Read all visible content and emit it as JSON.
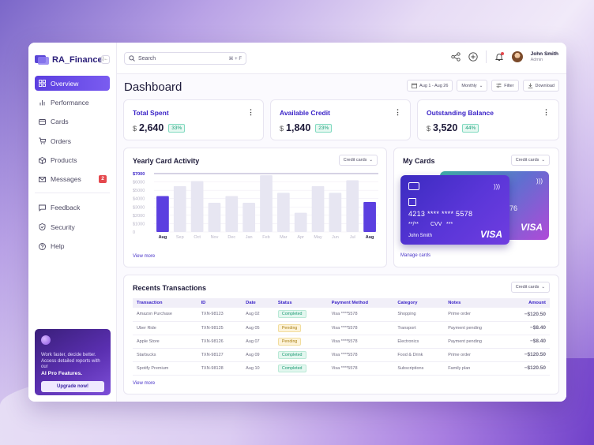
{
  "brand": {
    "name": "RA_Finance"
  },
  "sidebar": {
    "items": [
      {
        "label": "Overview",
        "icon": "grid-icon",
        "active": true
      },
      {
        "label": "Performance",
        "icon": "bar-chart-icon"
      },
      {
        "label": "Cards",
        "icon": "credit-card-icon"
      },
      {
        "label": "Orders",
        "icon": "cart-icon"
      },
      {
        "label": "Products",
        "icon": "box-icon"
      },
      {
        "label": "Messages",
        "icon": "mail-icon",
        "badge": "2"
      }
    ],
    "secondary": [
      {
        "label": "Feedback",
        "icon": "chat-icon"
      },
      {
        "label": "Security",
        "icon": "shield-icon"
      },
      {
        "label": "Help",
        "icon": "help-icon"
      }
    ]
  },
  "promo": {
    "text": "Work faster, decide better. Access detailed reports with our",
    "strong": "AI Pro Features.",
    "button": "Upgrade now!"
  },
  "topbar": {
    "search_placeholder": "Search",
    "shortcut": "⌘ + F",
    "user": {
      "name": "John Smith",
      "role": "Admin"
    }
  },
  "page": {
    "title": "Dashboard",
    "date_range": "Aug 1 - Aug 26",
    "period": "Monthly",
    "filter": "Filter",
    "download": "Download"
  },
  "stats": [
    {
      "title": "Total Spent",
      "currency": "$",
      "value": "2,640",
      "change": "33%"
    },
    {
      "title": "Available Credit",
      "currency": "$",
      "value": "1,840",
      "change": "23%"
    },
    {
      "title": "Outstanding Balance",
      "currency": "$",
      "value": "3,520",
      "change": "44%"
    }
  ],
  "activity": {
    "title": "Yearly Card Activity",
    "dropdown": "Credit cards",
    "view_more": "View more"
  },
  "chart_data": {
    "type": "bar",
    "categories": [
      "Aug",
      "Sep",
      "Oct",
      "Nov",
      "Dec",
      "Jan",
      "Feb",
      "Mar",
      "Apr",
      "May",
      "Jun",
      "Jul",
      "Aug"
    ],
    "values": [
      4300,
      5500,
      6100,
      3500,
      4300,
      3500,
      6800,
      4700,
      2300,
      5500,
      4700,
      6200,
      3600
    ],
    "highlight": [
      0,
      12
    ],
    "yticks": [
      "$7000",
      "$6000",
      "$5000",
      "$4000",
      "$3000",
      "$2000",
      "$1000",
      "0"
    ],
    "ylim": [
      0,
      7000
    ],
    "colors": {
      "highlight": "#5b3fe0",
      "base": "#e7e6f2"
    }
  },
  "mycards": {
    "title": "My Cards",
    "dropdown": "Credit cards",
    "manage": "Manage cards",
    "front": {
      "number": "4213 **** **** 5578",
      "expiry": "**/**",
      "cvv_label": "CVV",
      "cvv": "***",
      "holder": "John Smith",
      "network": "VISA"
    },
    "back": {
      "partial": "76",
      "network": "VISA"
    }
  },
  "transactions": {
    "title": "Recents Transactions",
    "dropdown": "Credit cards",
    "view_more": "View more",
    "columns": [
      "Transaction",
      "ID",
      "Date",
      "Status",
      "Payment Method",
      "Category",
      "Notes",
      "Amount"
    ],
    "rows": [
      {
        "transaction": "Amazon Purchase",
        "id": "TXN-98123",
        "date": "Aug 02",
        "status": "Completed",
        "method": "Visa ****5578",
        "category": "Shopping",
        "notes": "Prime order",
        "amount": "−$120.50"
      },
      {
        "transaction": "Uber Ride",
        "id": "TXN-98125",
        "date": "Aug 05",
        "status": "Pending",
        "method": "Visa ****5578",
        "category": "Transport",
        "notes": "Payment pending",
        "amount": "−$8.40"
      },
      {
        "transaction": "Apple Store",
        "id": "TXN-98126",
        "date": "Aug 07",
        "status": "Pending",
        "method": "Visa ****5578",
        "category": "Electronics",
        "notes": "Payment pending",
        "amount": "−$8.40"
      },
      {
        "transaction": "Starbucks",
        "id": "TXN-98127",
        "date": "Aug 09",
        "status": "Completed",
        "method": "Visa ****5578",
        "category": "Food & Drink",
        "notes": "Prime order",
        "amount": "−$120.50"
      },
      {
        "transaction": "Spotify Premium",
        "id": "TXN-98128",
        "date": "Aug 10",
        "status": "Completed",
        "method": "Visa ****5578",
        "category": "Subscriptions",
        "notes": "Family plan",
        "amount": "−$120.50"
      }
    ]
  }
}
